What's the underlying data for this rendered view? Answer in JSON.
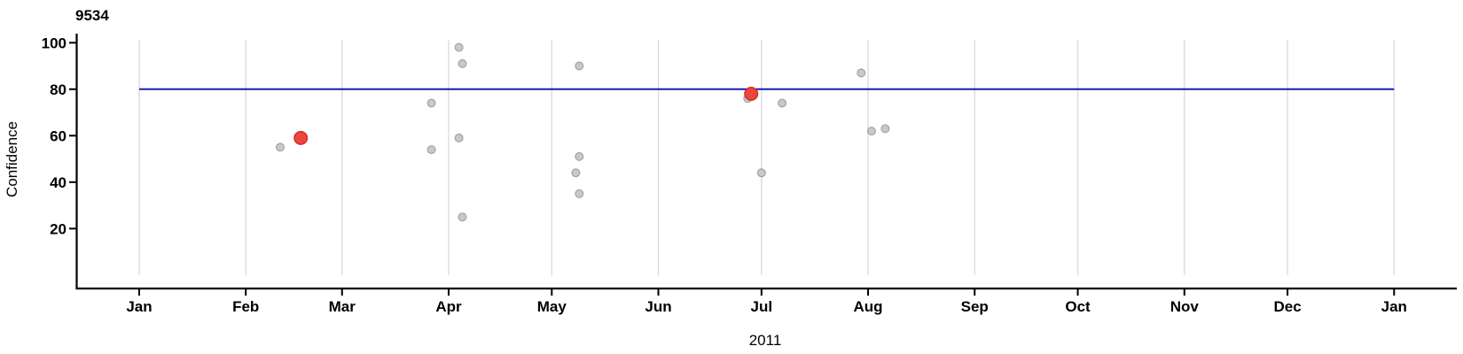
{
  "chart_data": {
    "type": "scatter",
    "title": "9534",
    "xlabel": "2011",
    "ylabel": "Confidence",
    "x_axis": {
      "unit": "day_of_year_2011",
      "domain_days": [
        -18,
        383
      ],
      "grid": true,
      "month_ticks": [
        {
          "label": "Jan",
          "day": 0
        },
        {
          "label": "Feb",
          "day": 31
        },
        {
          "label": "Mar",
          "day": 59
        },
        {
          "label": "Apr",
          "day": 90
        },
        {
          "label": "May",
          "day": 120
        },
        {
          "label": "Jun",
          "day": 151
        },
        {
          "label": "Jul",
          "day": 181
        },
        {
          "label": "Aug",
          "day": 212
        },
        {
          "label": "Sep",
          "day": 243
        },
        {
          "label": "Oct",
          "day": 273
        },
        {
          "label": "Nov",
          "day": 304
        },
        {
          "label": "Dec",
          "day": 334
        },
        {
          "label": "Jan",
          "day": 365
        }
      ]
    },
    "y_axis": {
      "ticks": [
        20,
        40,
        60,
        80,
        100
      ],
      "domain": [
        0,
        101.5
      ],
      "grid": false
    },
    "reference_line": {
      "value": 80,
      "span_days": [
        0,
        365
      ]
    },
    "points": [
      {
        "date": "Feb 11",
        "day": 41,
        "confidence": 55,
        "highlighted": false
      },
      {
        "date": "Feb 17",
        "day": 47,
        "confidence": 59,
        "highlighted": true
      },
      {
        "date": "Mar 27",
        "day": 85,
        "confidence": 74,
        "highlighted": false
      },
      {
        "date": "Mar 27",
        "day": 85,
        "confidence": 54,
        "highlighted": false
      },
      {
        "date": "Apr 4",
        "day": 93,
        "confidence": 98,
        "highlighted": false
      },
      {
        "date": "Apr 4",
        "day": 93,
        "confidence": 59,
        "highlighted": false
      },
      {
        "date": "Apr 5",
        "day": 94,
        "confidence": 91,
        "highlighted": false
      },
      {
        "date": "Apr 5",
        "day": 94,
        "confidence": 25,
        "highlighted": false
      },
      {
        "date": "May 9",
        "day": 128,
        "confidence": 90,
        "highlighted": false
      },
      {
        "date": "May 9",
        "day": 128,
        "confidence": 51,
        "highlighted": false
      },
      {
        "date": "May 8",
        "day": 127,
        "confidence": 44,
        "highlighted": false
      },
      {
        "date": "May 9",
        "day": 128,
        "confidence": 35,
        "highlighted": false
      },
      {
        "date": "Jun 27",
        "day": 177,
        "confidence": 76,
        "highlighted": false
      },
      {
        "date": "Jun 28",
        "day": 178,
        "confidence": 78,
        "highlighted": true
      },
      {
        "date": "Jul 7",
        "day": 187,
        "confidence": 74,
        "highlighted": false
      },
      {
        "date": "Jul 1",
        "day": 181,
        "confidence": 44,
        "highlighted": false
      },
      {
        "date": "Jul 30",
        "day": 210,
        "confidence": 87,
        "highlighted": false
      },
      {
        "date": "Aug 2",
        "day": 213,
        "confidence": 62,
        "highlighted": false
      },
      {
        "date": "Aug 6",
        "day": 217,
        "confidence": 63,
        "highlighted": false
      }
    ],
    "style": {
      "background": "#ffffff",
      "grid_color": "#d9d9d9",
      "axis_color": "#000000",
      "text_color": "#000000",
      "point_fill": "#c9c9c9",
      "point_stroke": "#a3a3a3",
      "highlight_fill": "#ee4540",
      "highlight_stroke": "#d62f2a",
      "reference_color": "#1a1abc"
    }
  }
}
